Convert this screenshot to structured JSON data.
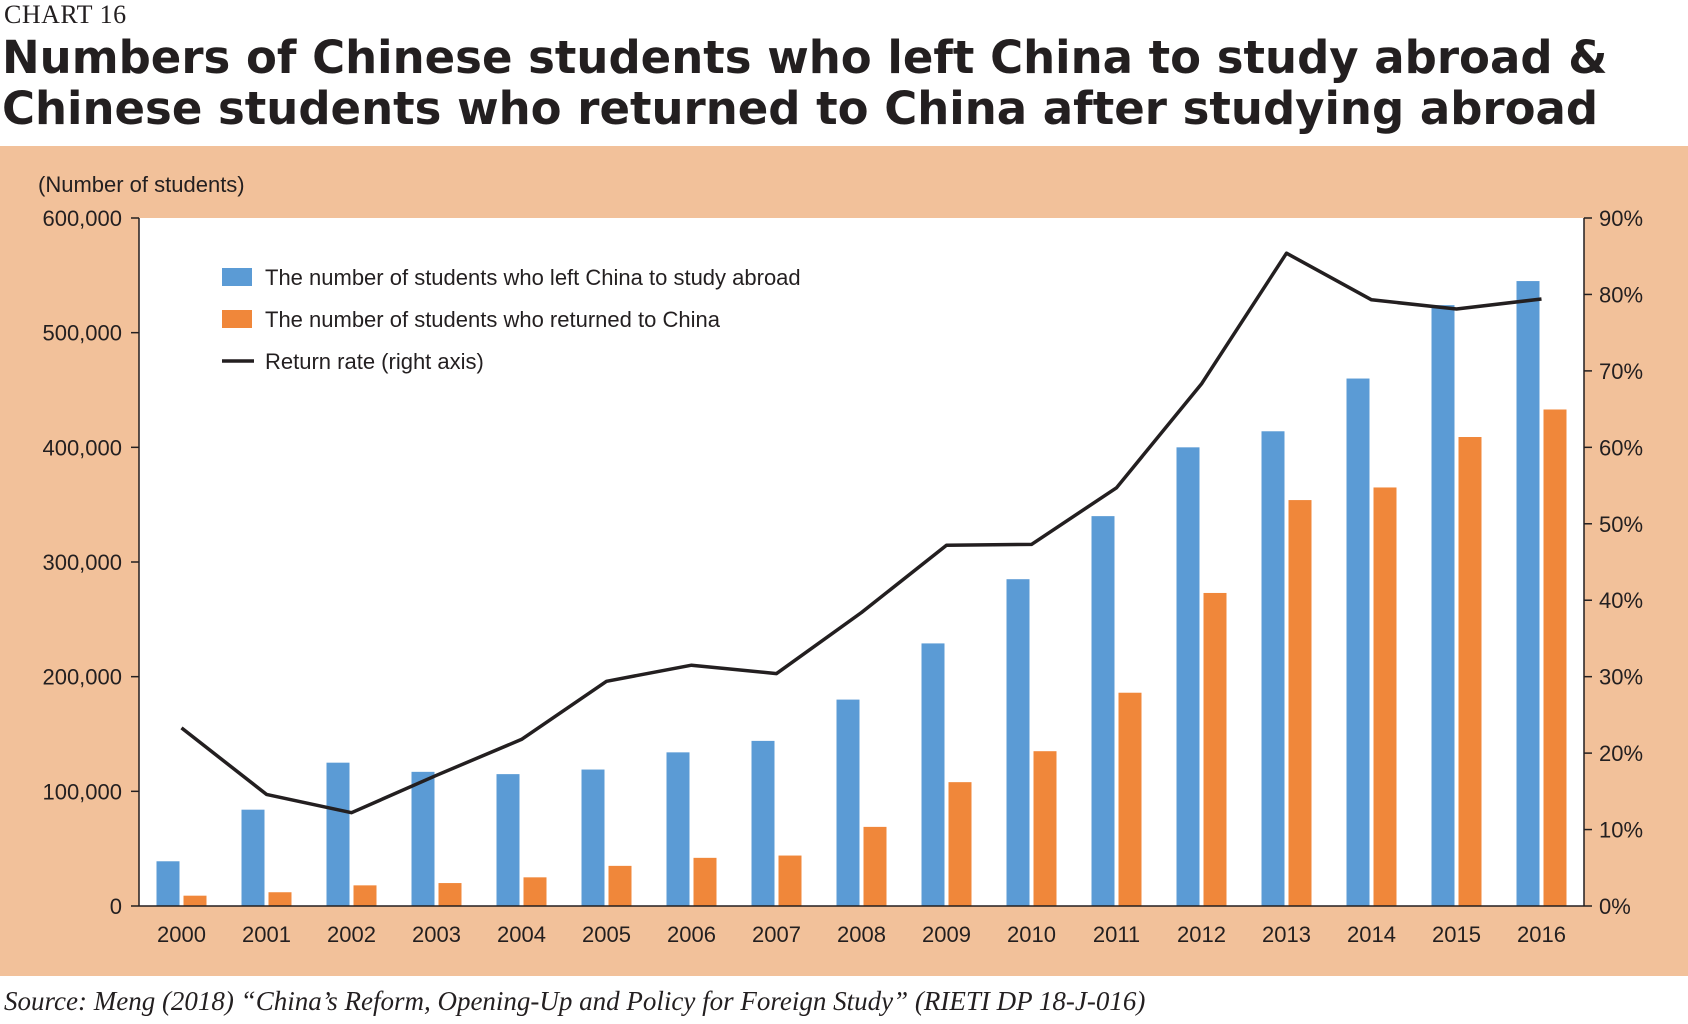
{
  "header": {
    "chart_label": "CHART 16",
    "title_line1": "Numbers of Chinese students who left China to study abroad &",
    "title_line2": "Chinese students who returned to China after studying abroad"
  },
  "source": "Source: Meng (2018) “China’s Reform, Opening-Up and Policy for Foreign Study” (RIETI DP 18-J-016)",
  "colors": {
    "panel_bg": "#f2c19a",
    "plot_bg": "#ffffff",
    "left_bar": "#5b9bd5",
    "returned_bar": "#f0873a",
    "line": "#231f20"
  },
  "chart_data": {
    "type": "bar",
    "categories": [
      "2000",
      "2001",
      "2002",
      "2003",
      "2004",
      "2005",
      "2006",
      "2007",
      "2008",
      "2009",
      "2010",
      "2011",
      "2012",
      "2013",
      "2014",
      "2015",
      "2016"
    ],
    "series": [
      {
        "name": "The number of students who left China to study abroad",
        "type": "bar",
        "axis": "left",
        "color": "#5b9bd5",
        "values": [
          39000,
          84000,
          125000,
          117000,
          115000,
          119000,
          134000,
          144000,
          180000,
          229000,
          285000,
          340000,
          400000,
          414000,
          460000,
          524000,
          545000
        ]
      },
      {
        "name": "The number of students who returned to China",
        "type": "bar",
        "axis": "left",
        "color": "#f0873a",
        "values": [
          9000,
          12000,
          18000,
          20000,
          25000,
          35000,
          42000,
          44000,
          69000,
          108000,
          135000,
          186000,
          273000,
          354000,
          365000,
          409000,
          433000
        ]
      },
      {
        "name": "Return rate (right axis)",
        "type": "line",
        "axis": "right",
        "color": "#231f20",
        "values": [
          23.3,
          14.6,
          12.2,
          17.1,
          21.8,
          29.4,
          31.5,
          30.4,
          38.4,
          47.2,
          47.3,
          54.7,
          68.3,
          85.4,
          79.3,
          78.1,
          79.4
        ]
      }
    ],
    "ylabel": "(Number of students)",
    "ylim": [
      0,
      600000
    ],
    "y_ticks": [
      "0",
      "100,000",
      "200,000",
      "300,000",
      "400,000",
      "500,000",
      "600,000"
    ],
    "y2lim": [
      0,
      90
    ],
    "y2_ticks": [
      "0%",
      "10%",
      "20%",
      "30%",
      "40%",
      "50%",
      "60%",
      "70%",
      "80%",
      "90%"
    ],
    "grid": false,
    "legend_position": "top-left"
  }
}
